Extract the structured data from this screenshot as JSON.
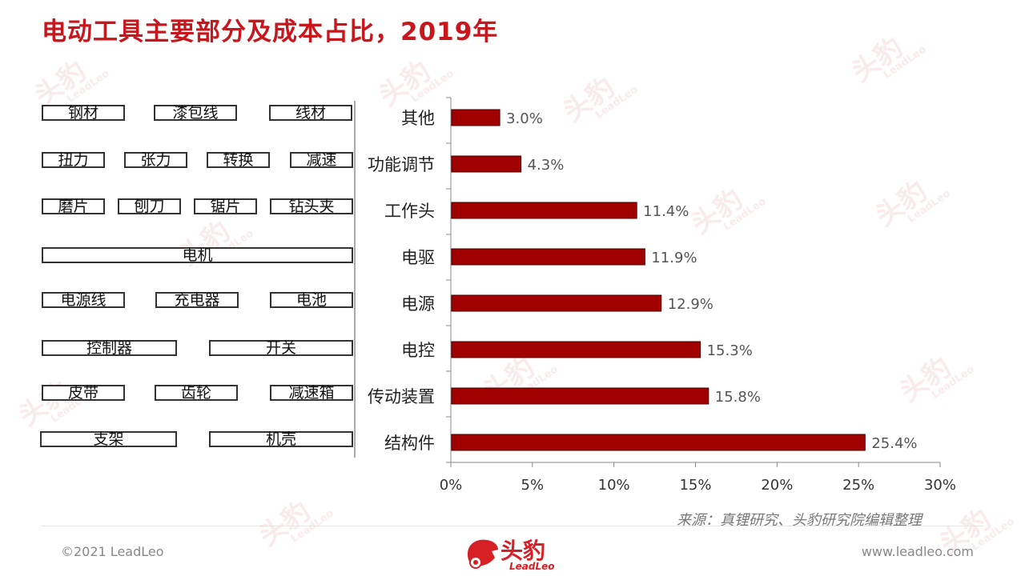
{
  "title": "电动工具主要部分及成本占比，2019年",
  "source": "来源：真锂研究、头豹研究院编辑整理",
  "footer": {
    "copyright": "©2021 LeadLeo",
    "website": "www.leadleo.com",
    "logo_text": "头豹",
    "logo_sub": "LeadLeo"
  },
  "watermark": {
    "text": "头豹",
    "sub": "LeadLeo"
  },
  "parts": [
    [
      "钢材",
      "漆包线",
      "线材"
    ],
    [
      "扭力",
      "张力",
      "转换",
      "减速"
    ],
    [
      "磨片",
      "刨刀",
      "锯片",
      "钻头夹"
    ],
    [
      "电机"
    ],
    [
      "电源线",
      "充电器",
      "电池"
    ],
    [
      "控制器",
      "开关"
    ],
    [
      "皮带",
      "齿轮",
      "减速箱"
    ],
    [
      "支架",
      "机壳"
    ]
  ],
  "chart_data": {
    "type": "bar",
    "orientation": "horizontal",
    "categories": [
      "其他",
      "功能调节",
      "工作头",
      "电驱",
      "电源",
      "电控",
      "传动装置",
      "结构件"
    ],
    "values": [
      3.0,
      4.3,
      11.4,
      11.9,
      12.9,
      15.3,
      15.8,
      25.4
    ],
    "data_labels": [
      "3.0%",
      "4.3%",
      "11.4%",
      "11.9%",
      "12.9%",
      "15.3%",
      "15.8%",
      "25.4%"
    ],
    "xlim": [
      0,
      30
    ],
    "xticks": [
      0,
      5,
      10,
      15,
      20,
      25,
      30
    ],
    "xtick_labels": [
      "0%",
      "5%",
      "10%",
      "15%",
      "20%",
      "25%",
      "30%"
    ],
    "bar_color": "#a00000",
    "grid": false,
    "legend": "none"
  },
  "colors": {
    "title": "#c8161d",
    "bar": "#a00000",
    "bar_edge": "#4a0000"
  }
}
